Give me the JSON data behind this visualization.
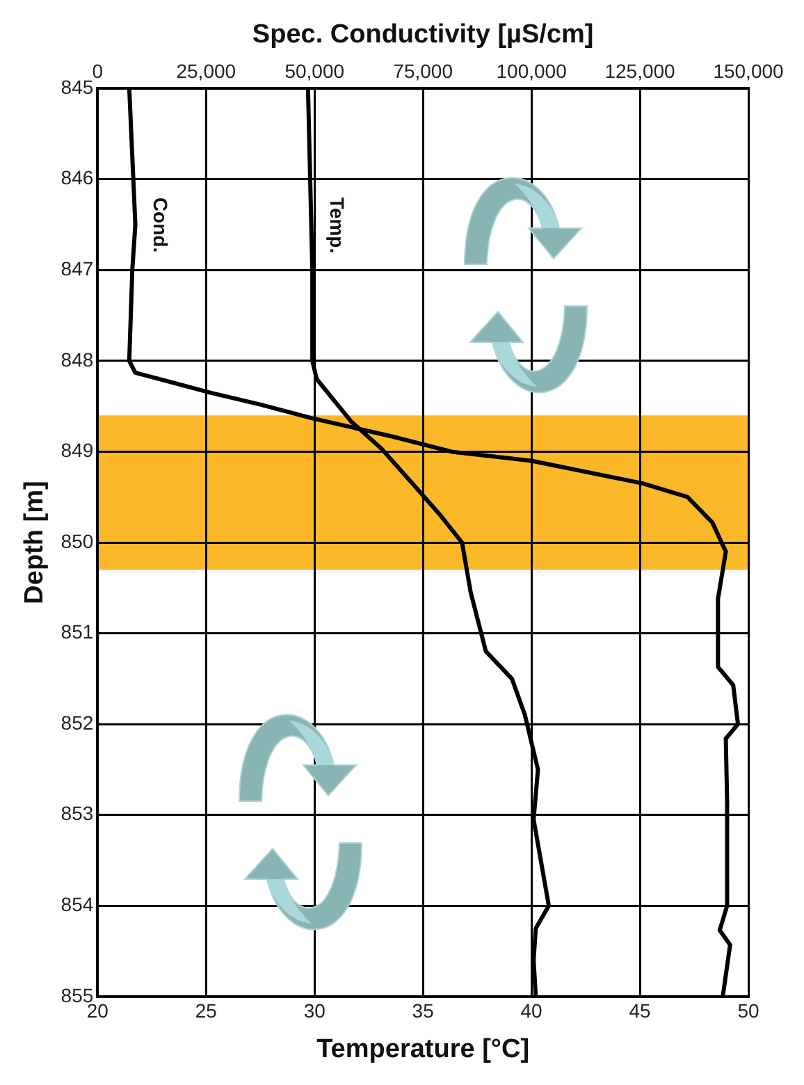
{
  "chart_data": {
    "type": "line",
    "xlabel": "Temperature [°C]",
    "x2label": "Spec. Conductivity [µS/cm]",
    "ylabel": "Depth [m]",
    "xlim": [
      20,
      50
    ],
    "xticks": [
      20,
      25,
      30,
      35,
      40,
      45,
      50
    ],
    "x2lim": [
      0,
      150000
    ],
    "x2ticks": [
      0,
      {
        "value": 25000,
        "label": "25,000"
      },
      {
        "value": 50000,
        "label": "50,000"
      },
      {
        "value": 75000,
        "label": "75,000"
      },
      {
        "value": 100000,
        "label": "100,000"
      },
      {
        "value": 125000,
        "label": "125,000"
      },
      {
        "value": 150000,
        "label": "150,000"
      }
    ],
    "ylim": [
      855,
      845
    ],
    "yticks": [
      845,
      846,
      847,
      848,
      849,
      850,
      851,
      852,
      853,
      854,
      855
    ],
    "grid": true,
    "legend": false,
    "marker": "none",
    "line_style": "solid",
    "bands": [
      {
        "axis": "y",
        "from": 848.6,
        "to": 850.3,
        "color": "#fbb829"
      }
    ],
    "series": [
      {
        "name": "Cond.",
        "color": "#000000",
        "axis": "x2",
        "x": [
          7300,
          8700,
          8000,
          7300,
          8700,
          26000,
          37500,
          49300,
          67700,
          81600,
          100000,
          125700,
          136000,
          141700,
          144800,
          143000,
          143000,
          146500,
          147600,
          144800,
          145100,
          145100,
          143400,
          145800,
          144100
        ],
        "values": [
          845.0,
          846.5,
          847.0,
          848.0,
          848.13,
          848.35,
          848.48,
          848.63,
          848.83,
          849.0,
          849.1,
          849.35,
          849.5,
          849.78,
          850.1,
          850.62,
          851.37,
          851.57,
          852.0,
          852.16,
          852.84,
          854.0,
          854.27,
          854.43,
          855.0
        ]
      },
      {
        "name": "Temp.",
        "color": "#000000",
        "x": [
          29.7,
          29.9,
          29.9,
          30.1,
          31.7,
          33.1,
          34.7,
          35.8,
          36.8,
          37.2,
          37.9,
          39.1,
          39.7,
          40.3,
          40.1,
          40.8,
          40.2,
          40.1,
          40.2
        ],
        "values": [
          845.0,
          847.0,
          848.0,
          848.2,
          848.67,
          848.97,
          849.4,
          849.7,
          850.0,
          850.55,
          851.2,
          851.5,
          851.9,
          852.5,
          853.05,
          854.0,
          854.25,
          854.6,
          855.0
        ]
      }
    ]
  }
}
